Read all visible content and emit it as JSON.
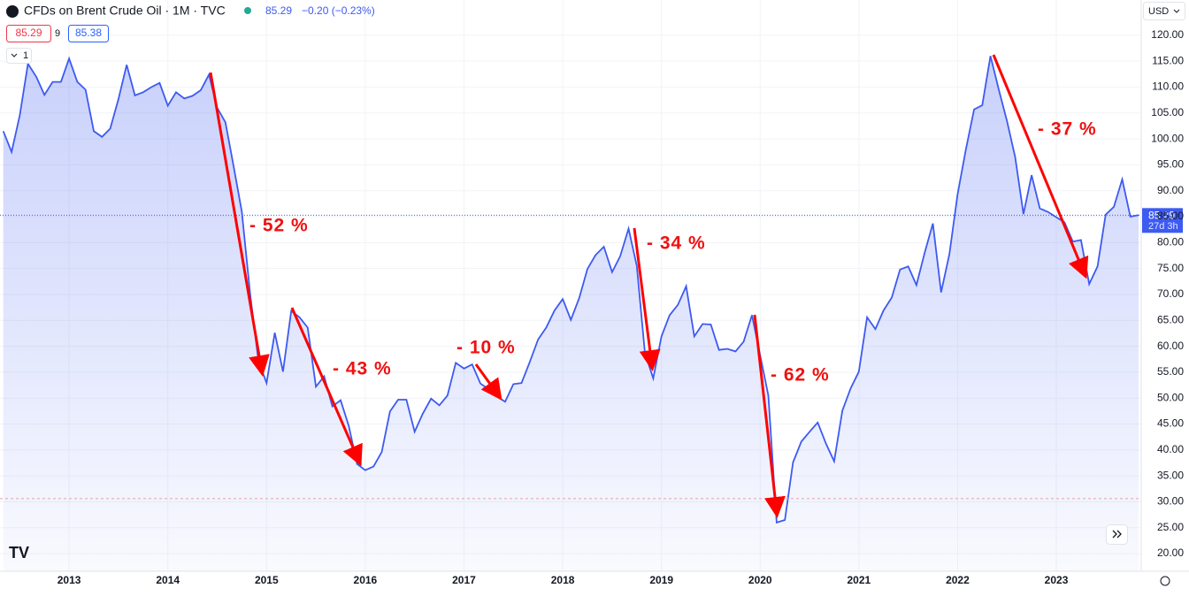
{
  "header": {
    "title": "CFDs on Brent Crude Oil · 1M · TVC",
    "price": "85.29",
    "change": "−0.20 (−0.23%)",
    "bid": "85.29",
    "spread": "9",
    "ask": "85.38",
    "interval": "1",
    "currency": "USD"
  },
  "chart_data": {
    "type": "area",
    "color": "#3d5af1",
    "grid": true,
    "x": [
      2012.333,
      2012.417,
      2012.5,
      2012.583,
      2012.667,
      2012.75,
      2012.833,
      2012.917,
      2013,
      2013.083,
      2013.167,
      2013.25,
      2013.333,
      2013.417,
      2013.5,
      2013.583,
      2013.667,
      2013.75,
      2013.833,
      2013.917,
      2014,
      2014.083,
      2014.167,
      2014.25,
      2014.333,
      2014.417,
      2014.5,
      2014.583,
      2014.667,
      2014.75,
      2014.833,
      2014.917,
      2015,
      2015.083,
      2015.167,
      2015.25,
      2015.333,
      2015.417,
      2015.5,
      2015.583,
      2015.667,
      2015.75,
      2015.833,
      2015.917,
      2016,
      2016.083,
      2016.167,
      2016.25,
      2016.333,
      2016.417,
      2016.5,
      2016.583,
      2016.667,
      2016.75,
      2016.833,
      2016.917,
      2017,
      2017.083,
      2017.167,
      2017.25,
      2017.333,
      2017.417,
      2017.5,
      2017.583,
      2017.667,
      2017.75,
      2017.833,
      2017.917,
      2018,
      2018.083,
      2018.167,
      2018.25,
      2018.333,
      2018.417,
      2018.5,
      2018.583,
      2018.667,
      2018.75,
      2018.833,
      2018.917,
      2019,
      2019.083,
      2019.167,
      2019.25,
      2019.333,
      2019.417,
      2019.5,
      2019.583,
      2019.667,
      2019.75,
      2019.833,
      2019.917,
      2020,
      2020.083,
      2020.167,
      2020.25,
      2020.333,
      2020.417,
      2020.5,
      2020.583,
      2020.667,
      2020.75,
      2020.833,
      2020.917,
      2021,
      2021.083,
      2021.167,
      2021.25,
      2021.333,
      2021.417,
      2021.5,
      2021.583,
      2021.667,
      2021.75,
      2021.833,
      2021.917,
      2022,
      2022.083,
      2022.167,
      2022.25,
      2022.333,
      2022.417,
      2022.5,
      2022.583,
      2022.667,
      2022.75,
      2022.833,
      2022.917,
      2023,
      2023.083,
      2023.167,
      2023.25,
      2023.333,
      2023.417,
      2023.5,
      2023.583,
      2023.667,
      2023.75,
      2023.833
    ],
    "values": [
      101.5,
      97.5,
      104.5,
      114.5,
      112,
      108.5,
      111,
      111,
      115.5,
      111,
      109.5,
      101.5,
      100.4,
      102,
      107.7,
      114.3,
      108.4,
      109,
      110,
      110.8,
      106.4,
      109,
      107.8,
      108.3,
      109.4,
      112.4,
      106,
      103.2,
      94.7,
      85.9,
      70.2,
      57.3,
      52.9,
      62.6,
      55.1,
      66.8,
      65.6,
      63.6,
      52.2,
      54.2,
      48.4,
      49.6,
      44.6,
      37.3,
      36.1,
      36.8,
      39.6,
      47.4,
      49.7,
      49.7,
      43.5,
      47,
      49.9,
      48.6,
      50.5,
      56.8,
      55.7,
      56.5,
      52.8,
      51.7,
      50.3,
      49.3,
      52.7,
      52.9,
      57,
      61.3,
      63.6,
      66.9,
      69.1,
      65.1,
      69.3,
      74.9,
      77.6,
      79.2,
      74.3,
      77.4,
      82.7,
      75.5,
      58.7,
      53.8,
      61.9,
      66,
      68,
      71.6,
      61.9,
      64.3,
      64.2,
      59.3,
      59.5,
      59,
      60.9,
      66,
      58.2,
      50.5,
      26,
      26.5,
      37.6,
      41.6,
      43.5,
      45.3,
      41.2,
      37.8,
      47.6,
      51.9,
      55.1,
      65.6,
      63.3,
      66.9,
      69.4,
      74.8,
      75.4,
      71.8,
      78.1,
      83.7,
      70.4,
      77.8,
      89.3,
      97.9,
      105.7,
      106.5,
      116,
      109.5,
      103.5,
      96.5,
      85.5,
      93,
      86.6,
      85.9,
      84.9,
      83.9,
      80.2,
      80.5,
      72,
      75.4,
      85.4,
      86.9,
      92.2,
      85,
      85.29
    ],
    "xlim": [
      2012.3,
      2023.86
    ],
    "xticks": [
      2013,
      2014,
      2015,
      2016,
      2017,
      2018,
      2019,
      2020,
      2021,
      2022,
      2023
    ],
    "ylim": [
      16.6,
      126.8
    ],
    "yticks": [
      {
        "value": 20,
        "label": "20.00"
      },
      {
        "value": 25,
        "label": "25.00"
      },
      {
        "value": 30,
        "label": "30.00"
      },
      {
        "value": 35,
        "label": "35.00"
      },
      {
        "value": 40,
        "label": "40.00"
      },
      {
        "value": 45,
        "label": "45.00"
      },
      {
        "value": 50,
        "label": "50.00"
      },
      {
        "value": 55,
        "label": "55.00"
      },
      {
        "value": 60,
        "label": "60.00"
      },
      {
        "value": 65,
        "label": "65.00"
      },
      {
        "value": 70,
        "label": "70.00"
      },
      {
        "value": 75,
        "label": "75.00"
      },
      {
        "value": 80,
        "label": "80.00"
      },
      {
        "value": 85,
        "label": "85.00"
      },
      {
        "value": 90,
        "label": "90.00"
      },
      {
        "value": 95,
        "label": "95.00"
      },
      {
        "value": 100,
        "label": "100.00"
      },
      {
        "value": 105,
        "label": "105.00"
      },
      {
        "value": 110,
        "label": "110.00"
      },
      {
        "value": 115,
        "label": "115.00"
      },
      {
        "value": 120,
        "label": "120.00"
      }
    ],
    "last_price": {
      "value": 85.29,
      "label": "85.29"
    },
    "countdown": "27d 3h",
    "reference_line": 30.6,
    "annotations": [
      "- 52 %",
      "- 43 %",
      "- 10 %",
      "- 34 %",
      "- 62 %",
      "- 37 %"
    ]
  }
}
